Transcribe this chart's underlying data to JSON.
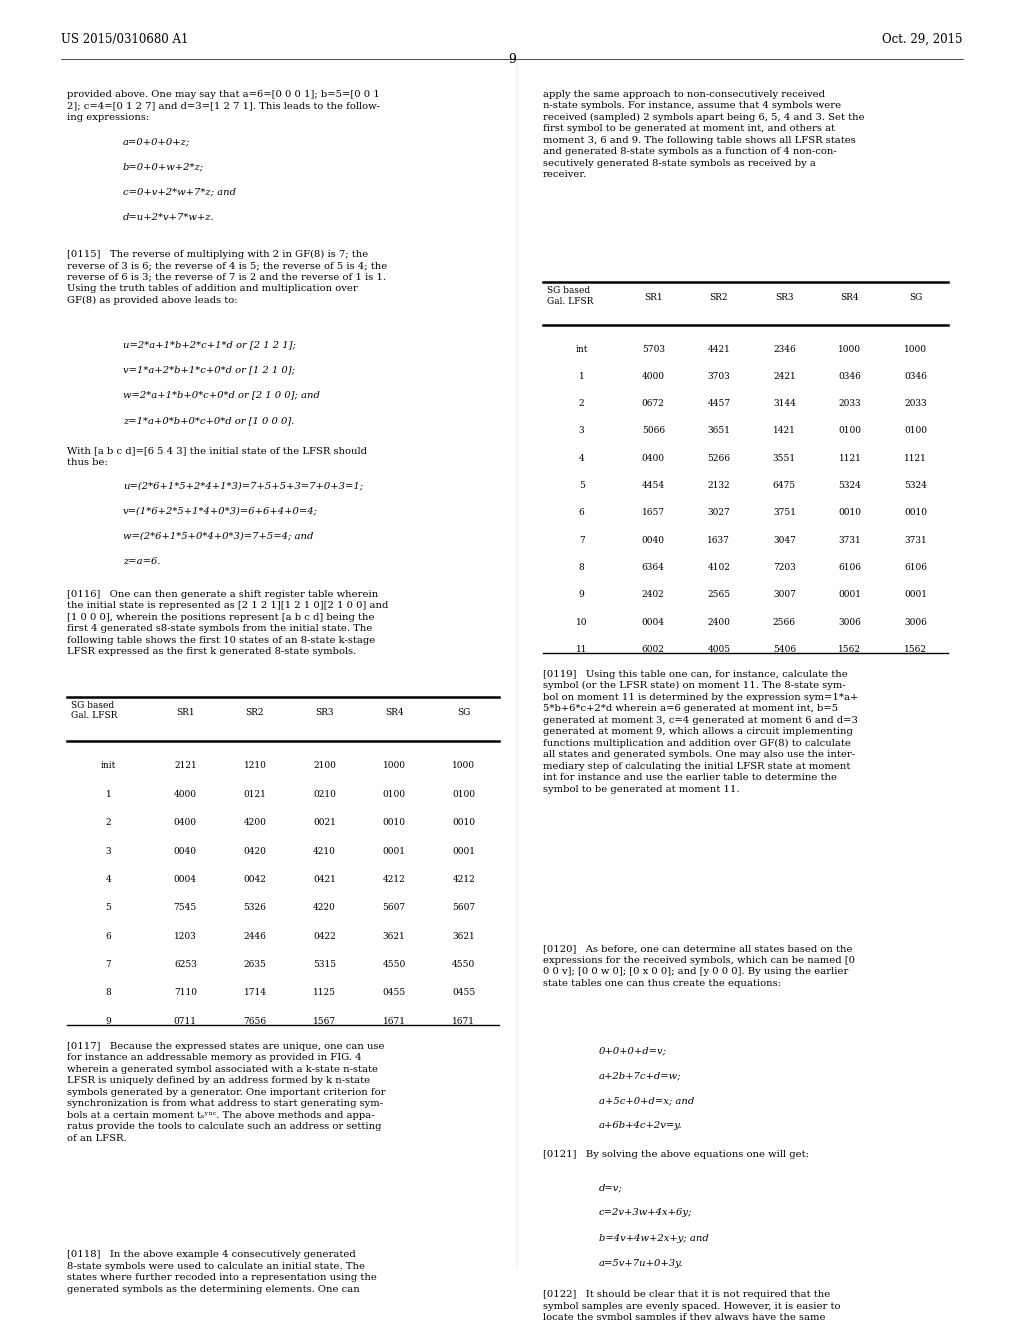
{
  "background_color": "#ffffff",
  "page_width": 10.24,
  "page_height": 13.2,
  "header_left": "US 2015/0310680 A1",
  "header_right": "Oct. 29, 2015",
  "page_number": "9",
  "table1": {
    "title_row": [
      "SG based\nGal. LFSR",
      "SR1",
      "SR2",
      "SR3",
      "SR4",
      "SG"
    ],
    "rows": [
      [
        "init",
        "2121",
        "1210",
        "2100",
        "1000",
        "1000"
      ],
      [
        "1",
        "4000",
        "0121",
        "0210",
        "0100",
        "0100"
      ],
      [
        "2",
        "0400",
        "4200",
        "0021",
        "0010",
        "0010"
      ],
      [
        "3",
        "0040",
        "0420",
        "4210",
        "0001",
        "0001"
      ],
      [
        "4",
        "0004",
        "0042",
        "0421",
        "4212",
        "4212"
      ],
      [
        "5",
        "7545",
        "5326",
        "4220",
        "5607",
        "5607"
      ],
      [
        "6",
        "1203",
        "2446",
        "0422",
        "3621",
        "3621"
      ],
      [
        "7",
        "6253",
        "2635",
        "5315",
        "4550",
        "4550"
      ],
      [
        "8",
        "7110",
        "1714",
        "1125",
        "0455",
        "0455"
      ],
      [
        "9",
        "0711",
        "7656",
        "1567",
        "1671",
        "1671"
      ]
    ]
  },
  "table2": {
    "title_row": [
      "SG based\nGal. LFSR",
      "SR1",
      "SR2",
      "SR3",
      "SR4",
      "SG"
    ],
    "rows": [
      [
        "int",
        "5703",
        "4421",
        "2346",
        "1000",
        "1000"
      ],
      [
        "1",
        "4000",
        "3703",
        "2421",
        "0346",
        "0346"
      ],
      [
        "2",
        "0672",
        "4457",
        "3144",
        "2033",
        "2033"
      ],
      [
        "3",
        "5066",
        "3651",
        "1421",
        "0100",
        "0100"
      ],
      [
        "4",
        "0400",
        "5266",
        "3551",
        "1121",
        "1121"
      ],
      [
        "5",
        "4454",
        "2132",
        "6475",
        "5324",
        "5324"
      ],
      [
        "6",
        "1657",
        "3027",
        "3751",
        "0010",
        "0010"
      ],
      [
        "7",
        "0040",
        "1637",
        "3047",
        "3731",
        "3731"
      ],
      [
        "8",
        "6364",
        "4102",
        "7203",
        "6106",
        "6106"
      ],
      [
        "9",
        "2402",
        "2565",
        "3007",
        "0001",
        "0001"
      ],
      [
        "10",
        "0004",
        "2400",
        "2566",
        "3006",
        "3006"
      ],
      [
        "11",
        "6002",
        "4005",
        "5406",
        "1562",
        "1562"
      ]
    ]
  }
}
